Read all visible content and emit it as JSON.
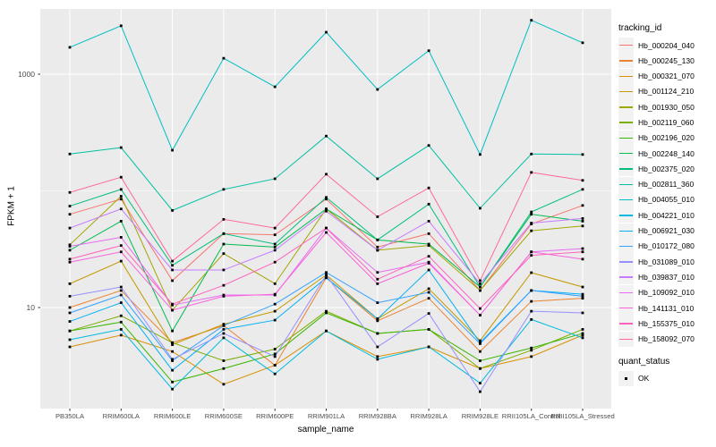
{
  "figure": {
    "background": "#FFFFFF",
    "panel_background": "#EBEBEB",
    "grid_color": "#FFFFFF",
    "tick_color": "#333333",
    "tick_label_color": "#4D4D4D",
    "point_color": "#000000",
    "legend_key_background": "#F2F2F2"
  },
  "chart_data": {
    "type": "line",
    "title": "",
    "xlabel": "sample_name",
    "ylabel": "FPKM + 1",
    "y_scale": "log10",
    "y_ticks": [
      10,
      1000
    ],
    "y_minor_ticks": [
      100
    ],
    "ylim": [
      1.4,
      3650
    ],
    "grid": true,
    "legend_position": "right",
    "categories": [
      "PB350LA",
      "RRIM600LA",
      "RRIM600LE",
      "RRIM600SE",
      "RRIM600PE",
      "RRIM901LA",
      "RRIM928BA",
      "RRIM928LA",
      "RRIM928LE",
      "RRII105LA_Control",
      "RRII105LA_Stressed"
    ],
    "series": [
      {
        "name": "Hb_000204_040",
        "color": "#F8766D",
        "values": [
          63,
          85,
          17,
          43,
          42,
          85,
          33,
          43,
          14,
          52,
          75
        ]
      },
      {
        "name": "Hb_000245_130",
        "color": "#EA8331",
        "values": [
          10,
          14,
          5.0,
          7.0,
          3.2,
          18,
          7.7,
          12,
          4.2,
          11.3,
          12
        ]
      },
      {
        "name": "Hb_000321_070",
        "color": "#D89000",
        "values": [
          4.6,
          5.8,
          4.2,
          2.2,
          3.2,
          6.3,
          3.8,
          4.6,
          3.0,
          3.8,
          5.8
        ]
      },
      {
        "name": "Hb_001124_210",
        "color": "#C49A00",
        "values": [
          16,
          25,
          4.8,
          7.2,
          9.3,
          19,
          8.0,
          14.5,
          5.2,
          19.9,
          15
        ]
      },
      {
        "name": "Hb_001930_050",
        "color": "#A3A500",
        "values": [
          34.5,
          90,
          9.5,
          29,
          16,
          70,
          31,
          34,
          14,
          45.5,
          50
        ]
      },
      {
        "name": "Hb_002119_060",
        "color": "#7CAE00",
        "values": [
          6.3,
          8.5,
          5.0,
          3.5,
          4.4,
          9.3,
          6.0,
          6.5,
          3.0,
          4.3,
          6.5
        ]
      },
      {
        "name": "Hb_002196_020",
        "color": "#39B600",
        "values": [
          6.3,
          7.5,
          2.3,
          3.0,
          4.0,
          9.0,
          6.0,
          6.5,
          3.5,
          4.5,
          6.0
        ]
      },
      {
        "name": "Hb_002248_140",
        "color": "#00BB4E",
        "values": [
          31,
          55,
          6.3,
          35,
          33,
          70,
          38,
          35,
          15,
          63,
          55
        ]
      },
      {
        "name": "Hb_002375_020",
        "color": "#00BF7D",
        "values": [
          74,
          103,
          23,
          43,
          35,
          88,
          38,
          77,
          15,
          66,
          103
        ]
      },
      {
        "name": "Hb_002811_360",
        "color": "#00C1A3",
        "values": [
          207,
          235,
          68,
          103,
          127,
          295,
          127,
          245,
          71,
          207,
          205
        ]
      },
      {
        "name": "Hb_004055_010",
        "color": "#00BFC4",
        "values": [
          1700,
          2600,
          223,
          1370,
          780,
          2290,
          740,
          1590,
          205,
          2900,
          1860
        ]
      },
      {
        "name": "Hb_004221_010",
        "color": "#00BAE0",
        "values": [
          5.3,
          6.5,
          2.0,
          5.5,
          2.7,
          6.3,
          3.6,
          4.6,
          2.25,
          7.9,
          5.5
        ]
      },
      {
        "name": "Hb_006921_030",
        "color": "#00B0F6",
        "values": [
          7.6,
          11,
          2.9,
          6.5,
          7.8,
          18,
          8.0,
          21,
          5.0,
          14,
          13
        ]
      },
      {
        "name": "Hb_010172_080",
        "color": "#35A2FF",
        "values": [
          9.0,
          12.8,
          3.5,
          7.0,
          10.7,
          20,
          11,
          13.5,
          4.9,
          14,
          12.5
        ]
      },
      {
        "name": "Hb_031089_010",
        "color": "#9590FF",
        "values": [
          12.5,
          15,
          3.6,
          6.0,
          3.8,
          19,
          4.6,
          8.9,
          1.9,
          9.3,
          9.0
        ]
      },
      {
        "name": "Hb_039837_010",
        "color": "#C77CFF",
        "values": [
          48,
          70,
          21,
          21,
          31,
          67,
          31,
          55,
          16,
          53,
          58
        ]
      },
      {
        "name": "Hb_109092_010",
        "color": "#E76BF3",
        "values": [
          33.5,
          40,
          10.5,
          12.8,
          12.8,
          48,
          20,
          24.5,
          8.6,
          30,
          32
        ]
      },
      {
        "name": "Hb_141131_010",
        "color": "#FA62DB",
        "values": [
          24.5,
          30,
          9.5,
          12.5,
          13,
          44,
          16,
          24,
          8.6,
          30,
          26
        ]
      },
      {
        "name": "Hb_155375_010",
        "color": "#FF62BC",
        "values": [
          26,
          34,
          10.7,
          15.5,
          24.5,
          48,
          17.5,
          27.5,
          9.8,
          28,
          30
        ]
      },
      {
        "name": "Hb_158092_070",
        "color": "#FF6A98",
        "values": [
          97,
          131,
          25,
          57,
          48,
          139,
          60,
          106,
          17,
          144,
          123
        ]
      }
    ],
    "legend": {
      "title": "tracking_id"
    },
    "quant_status": {
      "title": "quant_status",
      "entries": [
        "OK"
      ]
    }
  }
}
